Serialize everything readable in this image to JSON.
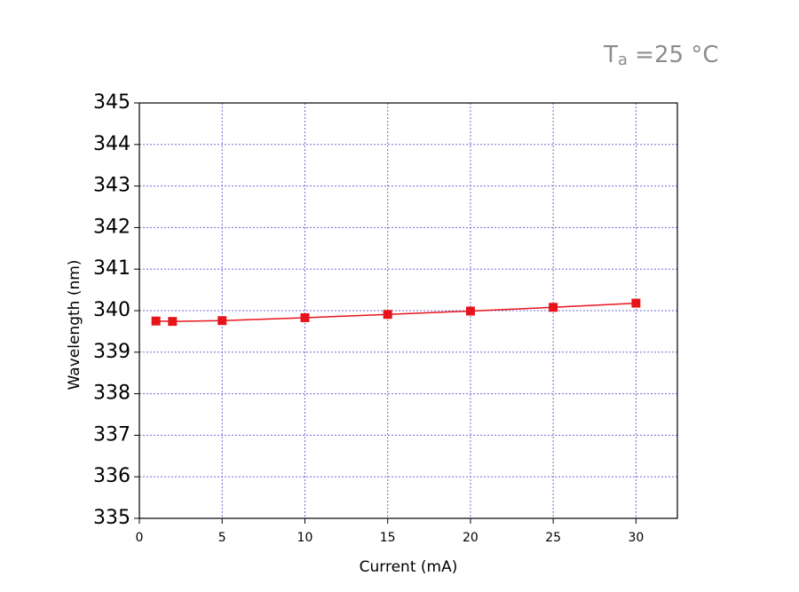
{
  "chart_data": {
    "type": "line",
    "annotation": {
      "main": "T",
      "sub": "a",
      "rest": " =25 °C"
    },
    "xlabel": "Current (mA)",
    "ylabel": "Wavelength (nm)",
    "x": [
      1,
      2,
      5,
      10,
      15,
      20,
      25,
      30
    ],
    "series": [
      {
        "name": null,
        "color": "#e8141c",
        "values": [
          339.75,
          339.74,
          339.76,
          339.83,
          339.91,
          339.99,
          340.08,
          340.18
        ]
      }
    ],
    "xlim": [
      0,
      32.5
    ],
    "xticks": [
      0,
      5,
      10,
      15,
      20,
      25,
      30
    ],
    "ylim": [
      335,
      345
    ],
    "yticks": [
      335,
      336,
      337,
      338,
      339,
      340,
      341,
      342,
      343,
      344,
      345
    ],
    "grid": true
  }
}
